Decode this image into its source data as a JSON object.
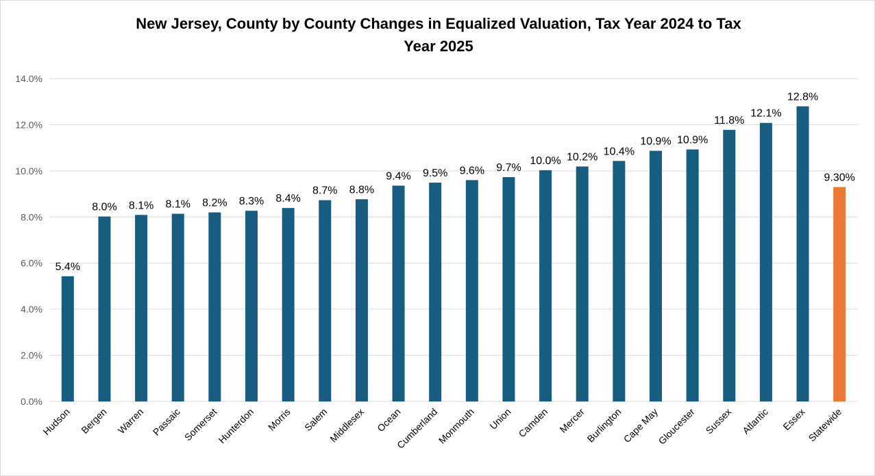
{
  "chart_data": {
    "type": "bar",
    "title": "New Jersey, County by County Changes in Equalized Valuation, Tax Year 2024 to Tax Year 2025",
    "title_lines": [
      "New Jersey, County by County Changes in Equalized Valuation, Tax Year 2024 to Tax",
      "Year 2025"
    ],
    "xlabel": "",
    "ylabel": "",
    "ylim": [
      0,
      14
    ],
    "yticks": [
      0,
      2,
      4,
      6,
      8,
      10,
      12,
      14
    ],
    "ytick_labels": [
      "0.0%",
      "2.0%",
      "4.0%",
      "6.0%",
      "8.0%",
      "10.0%",
      "12.0%",
      "14.0%"
    ],
    "grid": true,
    "legend": "none",
    "categories": [
      "Hudson",
      "Bergen",
      "Warren",
      "Passaic",
      "Somerset",
      "Hunterdon",
      "Morris",
      "Salem",
      "Middlesex",
      "Ocean",
      "Cumberland",
      "Monmouth",
      "Union",
      "Camden",
      "Mercer",
      "Burlington",
      "Cape May",
      "Gloucester",
      "Sussex",
      "Atlantic",
      "Essex",
      "Statewide"
    ],
    "values": [
      5.43,
      8.02,
      8.09,
      8.14,
      8.2,
      8.27,
      8.39,
      8.73,
      8.77,
      9.36,
      9.49,
      9.6,
      9.73,
      10.03,
      10.19,
      10.43,
      10.87,
      10.93,
      11.78,
      12.08,
      12.8,
      9.3
    ],
    "data_labels": [
      "5.4%",
      "8.0%",
      "8.1%",
      "8.1%",
      "8.2%",
      "8.3%",
      "8.4%",
      "8.7%",
      "8.8%",
      "9.4%",
      "9.5%",
      "9.6%",
      "9.7%",
      "10.0%",
      "10.2%",
      "10.4%",
      "10.9%",
      "10.9%",
      "11.8%",
      "12.1%",
      "12.8%",
      "9.30%"
    ],
    "colors": {
      "county": "#175c81",
      "statewide": "#ec7833",
      "grid": "#d9d9d9",
      "axis_text": "#595959"
    }
  }
}
